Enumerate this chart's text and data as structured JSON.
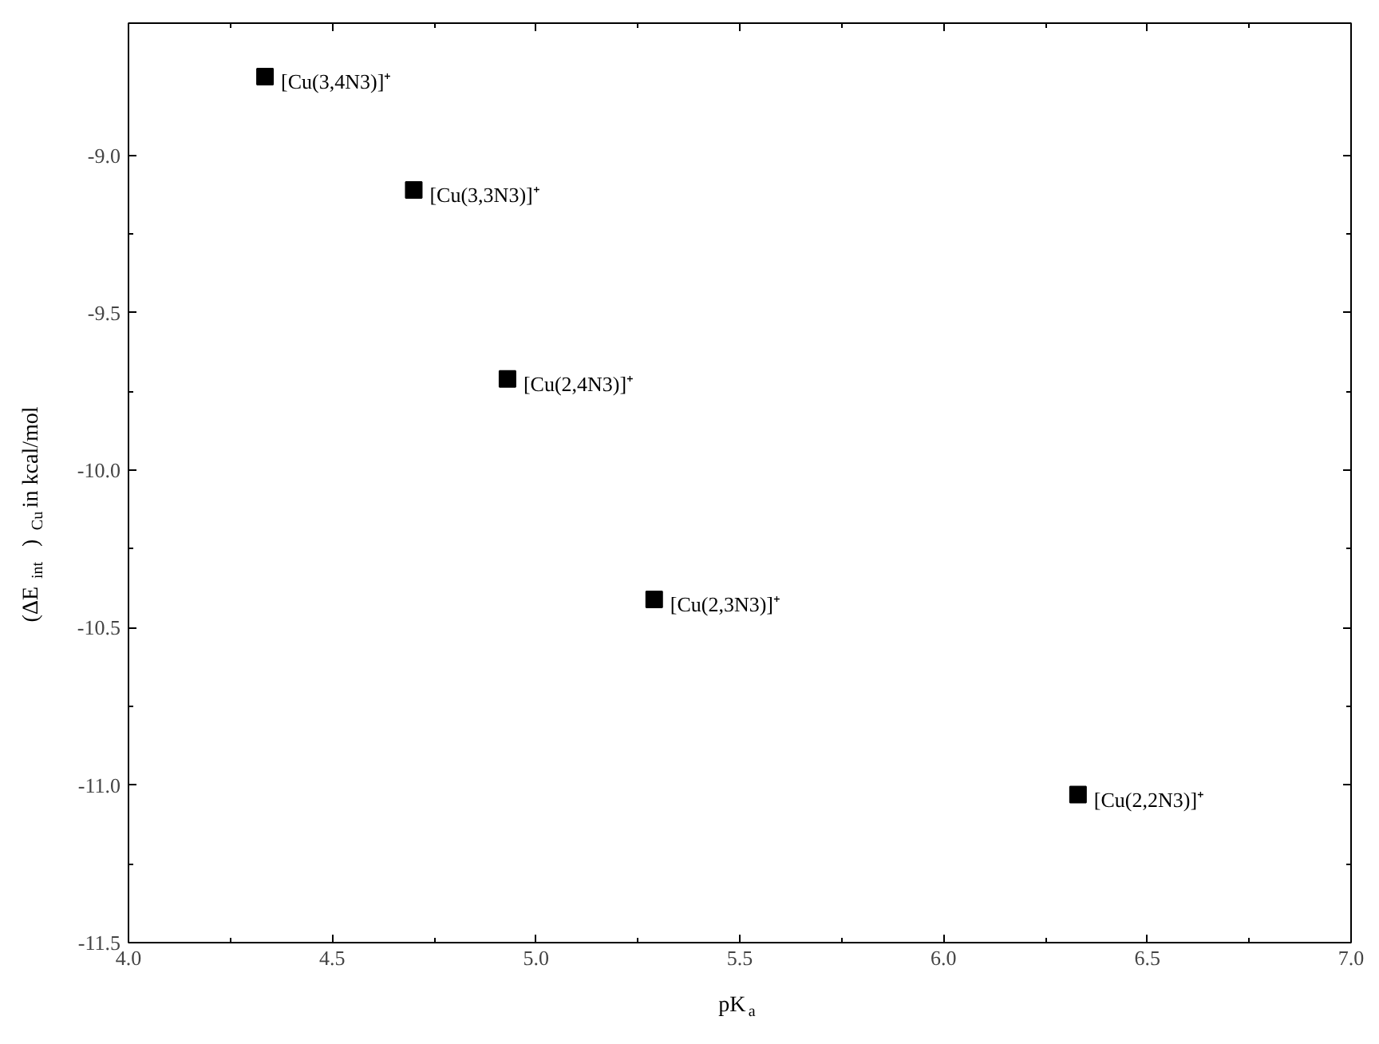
{
  "chart_data": {
    "type": "scatter",
    "xlabel": "pK$_{a}$",
    "ylabel": "(ΔE$_{int}$)$_{Cu}$ in kcal/mol",
    "x": [
      4.335,
      4.7,
      4.93,
      5.29,
      6.33
    ],
    "values": [
      -8.75,
      -9.11,
      -9.71,
      -10.41,
      -11.03
    ],
    "color": "#000000",
    "marker": "square",
    "grid": false,
    "xlim": [
      4.0,
      7.0
    ],
    "xticks": [
      {
        "value": 4,
        "label": "4.0"
      },
      4.5,
      {
        "value": 5,
        "label": "5.0"
      },
      5.5,
      {
        "value": 6,
        "label": "6.0"
      },
      6.5,
      {
        "value": 7,
        "label": "7.0"
      }
    ],
    "ylim": [
      -11.5,
      -8.58
    ],
    "yticks": [
      -11.5,
      {
        "value": -11,
        "label": "-11.0"
      },
      -10.5,
      {
        "value": -10,
        "label": "-10.0"
      },
      -9.5,
      {
        "value": -9,
        "label": "-9.0"
      }
    ],
    "annotations": [
      {
        "text": "[Cu(3,4N3)]⁺",
        "x": 4.335,
        "y": -8.75
      },
      {
        "text": "[Cu(3,3N3)]⁺",
        "x": 4.7,
        "y": -9.11
      },
      {
        "text": "[Cu(2,4N3)]⁺",
        "x": 4.93,
        "y": -9.71
      },
      {
        "text": "[Cu(2,3N3)]⁺",
        "x": 5.29,
        "y": -10.41
      },
      {
        "text": "[Cu(2,2N3)]⁺",
        "x": 6.33,
        "y": -11.03
      }
    ]
  }
}
